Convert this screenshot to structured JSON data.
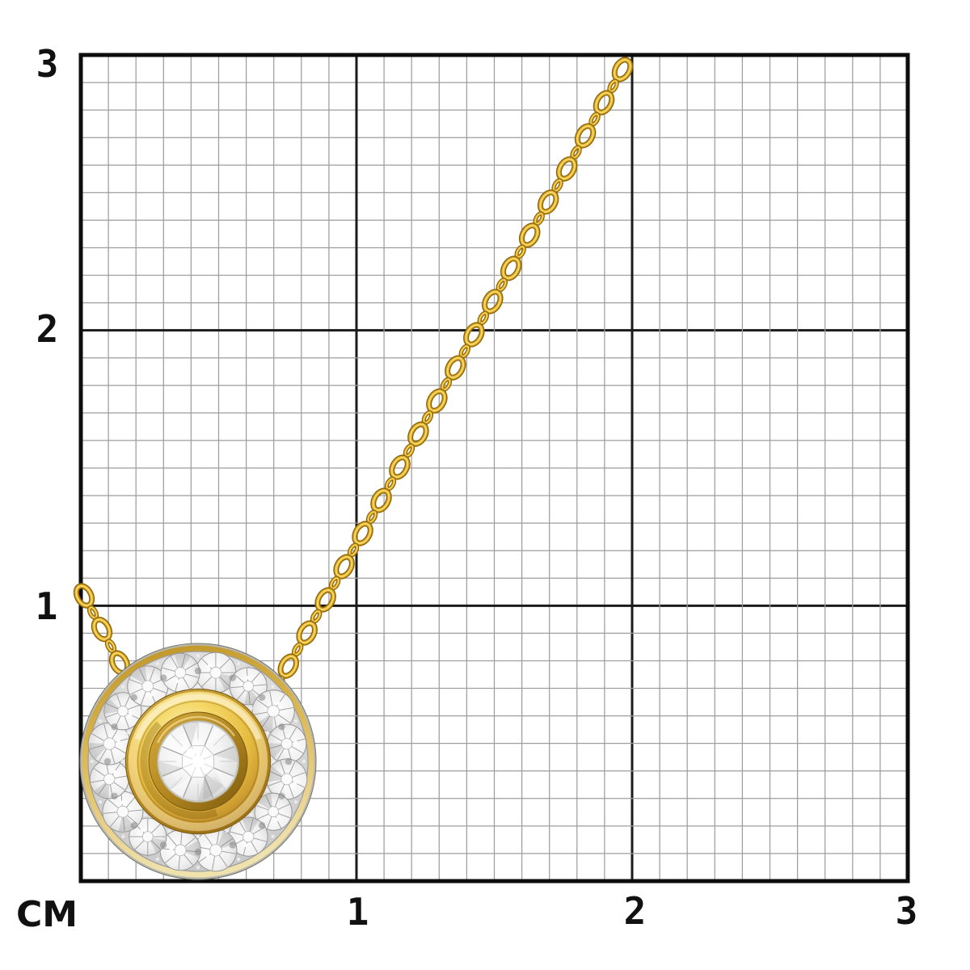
{
  "scene": {
    "type": "product measurement photo",
    "subject": "yellow gold cable-chain necklace with round diamond halo pendant on centimeter grid"
  },
  "grid": {
    "unit": "CM",
    "left_labels": [
      "3",
      "2",
      "1"
    ],
    "bottom_labels": [
      "1",
      "2",
      "3"
    ],
    "cm_per_major_square": 1,
    "minor_divisions_per_cm": 10
  },
  "pendant": {
    "halo_stone_count": 16,
    "center_stone": "round brilliant diamond",
    "approx_diameter_cm": 0.84
  },
  "colors": {
    "background": "#ffffff",
    "grid_minor": "#9e9e9e",
    "grid_major": "#1b1b1b",
    "grid_border": "#0d0d0d",
    "label_text": "#111111",
    "gold_link_dark": "#8c6208",
    "gold_link_mid": "#d7a61d",
    "gold_link_light": "#f6d96e",
    "gold_rim_light": "#f0e2ad",
    "gold_disc_mid": "#e6bc41",
    "gold_deep": "#926810",
    "silver_light": "#fafafa",
    "silver_mid": "#d2d2d2",
    "silver_deep": "#9a9a9a"
  }
}
